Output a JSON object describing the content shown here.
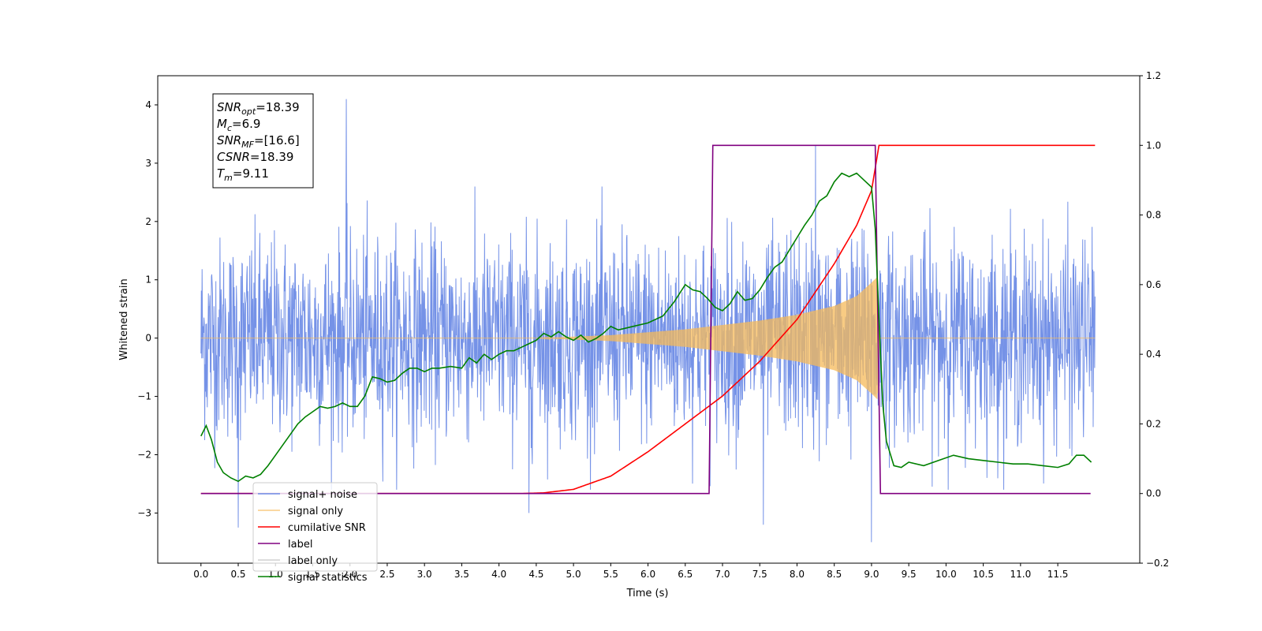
{
  "chart_data": {
    "type": "line",
    "xlabel": "Time (s)",
    "ylabel": "Whitened strain",
    "x_ticks": [
      "0.0",
      "0.5",
      "1.0",
      "1.5",
      "2.0",
      "2.5",
      "3.0",
      "3.5",
      "4.0",
      "4.5",
      "5.0",
      "5.5",
      "6.0",
      "6.5",
      "7.0",
      "7.5",
      "8.0",
      "8.5",
      "9.0",
      "9.5",
      "10.0",
      "10.5",
      "11.0",
      "11.5"
    ],
    "y_left_ticks": [
      -3,
      -2,
      -1,
      0,
      1,
      2,
      3,
      4
    ],
    "y_right_ticks": [
      "−0.2",
      "0.0",
      "0.2",
      "0.4",
      "0.6",
      "0.8",
      "1.0",
      "1.2"
    ],
    "xlim": [
      -0.58,
      12.6
    ],
    "ylim_left": [
      -3.86,
      4.5
    ],
    "ylim_right": [
      -0.2,
      1.2
    ],
    "annotation": [
      {
        "name": "SNR",
        "sub": "opt",
        "value": "=18.39"
      },
      {
        "name": "M",
        "sub": "c",
        "value": "=6.9"
      },
      {
        "name": "SNR",
        "sub": "MF",
        "value": "=[16.6]"
      },
      {
        "name": "CSNR",
        "sub": "",
        "value": "=18.39"
      },
      {
        "name": "T",
        "sub": "m",
        "value": "=9.11"
      }
    ],
    "legend_placement": "lower-left",
    "series": [
      {
        "name": "signal+ noise",
        "axis": "left",
        "color": "#6e8ce6",
        "x_range": [
          0,
          12
        ],
        "noise_sd": 0.85,
        "extremes": [
          [
            1.95,
            4.1
          ],
          [
            8.25,
            3.3
          ],
          [
            9.0,
            -3.5
          ],
          [
            0.5,
            -3.25
          ],
          [
            4.4,
            -3.0
          ],
          [
            7.55,
            -3.2
          ]
        ]
      },
      {
        "name": "signal only",
        "axis": "left",
        "color": "#f5b95a",
        "merger_time": 9.11,
        "amplitude_envelope": [
          [
            4.5,
            0.0
          ],
          [
            5.5,
            0.05
          ],
          [
            6.5,
            0.15
          ],
          [
            7.5,
            0.3
          ],
          [
            8.0,
            0.4
          ],
          [
            8.5,
            0.55
          ],
          [
            8.8,
            0.72
          ],
          [
            9.0,
            0.95
          ],
          [
            9.08,
            1.05
          ],
          [
            9.11,
            0.0
          ]
        ]
      },
      {
        "name": "cumilative SNR",
        "axis": "right",
        "color": "#ff0000",
        "points": [
          [
            0,
            0
          ],
          [
            4.3,
            0
          ],
          [
            4.6,
            0.002
          ],
          [
            5.0,
            0.012
          ],
          [
            5.5,
            0.05
          ],
          [
            6.0,
            0.12
          ],
          [
            6.5,
            0.2
          ],
          [
            7.0,
            0.28
          ],
          [
            7.5,
            0.38
          ],
          [
            8.0,
            0.5
          ],
          [
            8.5,
            0.66
          ],
          [
            8.8,
            0.77
          ],
          [
            9.0,
            0.87
          ],
          [
            9.1,
            1.0
          ],
          [
            12.0,
            1.0
          ]
        ]
      },
      {
        "name": "label",
        "axis": "right",
        "color": "#800080",
        "points": [
          [
            0,
            0
          ],
          [
            6.82,
            0
          ],
          [
            6.87,
            1.0
          ],
          [
            9.05,
            1.0
          ],
          [
            9.12,
            0
          ],
          [
            11.94,
            0
          ]
        ]
      },
      {
        "name": "label only",
        "axis": "right",
        "color": "#d0d0d0",
        "points": []
      },
      {
        "name": "signal statistics",
        "axis": "right",
        "color": "#008000",
        "points": [
          [
            0,
            0.165
          ],
          [
            0.07,
            0.195
          ],
          [
            0.14,
            0.155
          ],
          [
            0.22,
            0.09
          ],
          [
            0.3,
            0.06
          ],
          [
            0.4,
            0.045
          ],
          [
            0.5,
            0.035
          ],
          [
            0.6,
            0.05
          ],
          [
            0.7,
            0.045
          ],
          [
            0.8,
            0.055
          ],
          [
            0.9,
            0.08
          ],
          [
            1.0,
            0.11
          ],
          [
            1.1,
            0.14
          ],
          [
            1.2,
            0.17
          ],
          [
            1.3,
            0.2
          ],
          [
            1.4,
            0.22
          ],
          [
            1.5,
            0.235
          ],
          [
            1.6,
            0.25
          ],
          [
            1.7,
            0.245
          ],
          [
            1.8,
            0.25
          ],
          [
            1.9,
            0.26
          ],
          [
            2.0,
            0.25
          ],
          [
            2.1,
            0.25
          ],
          [
            2.2,
            0.28
          ],
          [
            2.3,
            0.335
          ],
          [
            2.4,
            0.33
          ],
          [
            2.5,
            0.32
          ],
          [
            2.6,
            0.325
          ],
          [
            2.7,
            0.345
          ],
          [
            2.8,
            0.36
          ],
          [
            2.9,
            0.36
          ],
          [
            3.0,
            0.35
          ],
          [
            3.1,
            0.36
          ],
          [
            3.2,
            0.36
          ],
          [
            3.35,
            0.365
          ],
          [
            3.5,
            0.36
          ],
          [
            3.6,
            0.39
          ],
          [
            3.7,
            0.375
          ],
          [
            3.8,
            0.4
          ],
          [
            3.9,
            0.385
          ],
          [
            4.0,
            0.4
          ],
          [
            4.1,
            0.41
          ],
          [
            4.2,
            0.41
          ],
          [
            4.3,
            0.42
          ],
          [
            4.4,
            0.43
          ],
          [
            4.5,
            0.44
          ],
          [
            4.6,
            0.46
          ],
          [
            4.7,
            0.45
          ],
          [
            4.8,
            0.465
          ],
          [
            4.9,
            0.45
          ],
          [
            5.0,
            0.44
          ],
          [
            5.1,
            0.455
          ],
          [
            5.2,
            0.435
          ],
          [
            5.3,
            0.445
          ],
          [
            5.4,
            0.46
          ],
          [
            5.5,
            0.48
          ],
          [
            5.6,
            0.47
          ],
          [
            5.7,
            0.475
          ],
          [
            5.8,
            0.48
          ],
          [
            6.0,
            0.49
          ],
          [
            6.2,
            0.51
          ],
          [
            6.35,
            0.55
          ],
          [
            6.5,
            0.6
          ],
          [
            6.6,
            0.585
          ],
          [
            6.7,
            0.58
          ],
          [
            6.8,
            0.56
          ],
          [
            6.9,
            0.535
          ],
          [
            7.0,
            0.525
          ],
          [
            7.1,
            0.545
          ],
          [
            7.2,
            0.58
          ],
          [
            7.3,
            0.555
          ],
          [
            7.4,
            0.56
          ],
          [
            7.5,
            0.585
          ],
          [
            7.6,
            0.62
          ],
          [
            7.7,
            0.65
          ],
          [
            7.8,
            0.665
          ],
          [
            7.9,
            0.7
          ],
          [
            8.0,
            0.735
          ],
          [
            8.1,
            0.77
          ],
          [
            8.2,
            0.8
          ],
          [
            8.3,
            0.84
          ],
          [
            8.4,
            0.855
          ],
          [
            8.5,
            0.895
          ],
          [
            8.6,
            0.92
          ],
          [
            8.7,
            0.91
          ],
          [
            8.8,
            0.92
          ],
          [
            8.9,
            0.9
          ],
          [
            9.0,
            0.88
          ],
          [
            9.05,
            0.76
          ],
          [
            9.1,
            0.5
          ],
          [
            9.15,
            0.26
          ],
          [
            9.2,
            0.15
          ],
          [
            9.3,
            0.08
          ],
          [
            9.4,
            0.075
          ],
          [
            9.5,
            0.09
          ],
          [
            9.7,
            0.08
          ],
          [
            9.9,
            0.095
          ],
          [
            10.1,
            0.11
          ],
          [
            10.3,
            0.1
          ],
          [
            10.5,
            0.095
          ],
          [
            10.7,
            0.09
          ],
          [
            10.9,
            0.085
          ],
          [
            11.1,
            0.085
          ],
          [
            11.3,
            0.08
          ],
          [
            11.5,
            0.075
          ],
          [
            11.65,
            0.085
          ],
          [
            11.75,
            0.11
          ],
          [
            11.85,
            0.11
          ],
          [
            11.95,
            0.09
          ]
        ]
      }
    ]
  }
}
